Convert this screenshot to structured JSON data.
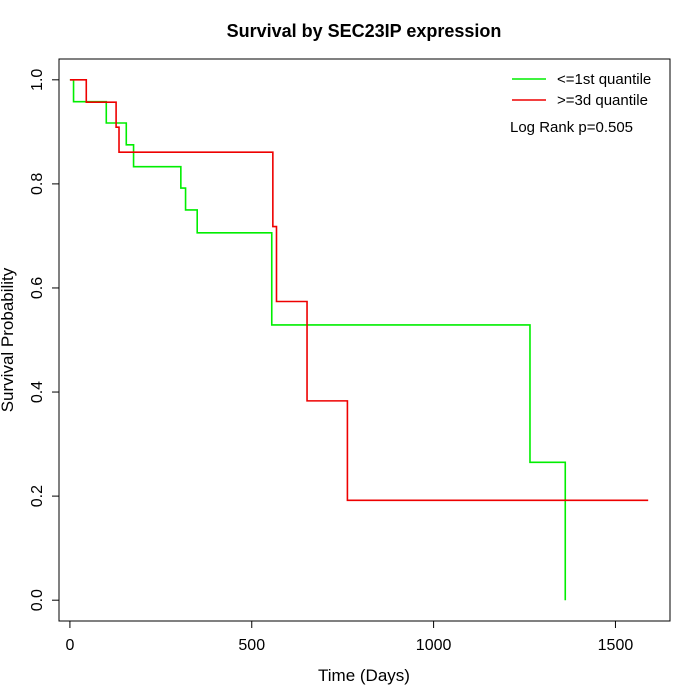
{
  "chart_data": {
    "type": "line",
    "step": true,
    "title": "Survival by SEC23IP expression",
    "xlabel": "Time (Days)",
    "ylabel": "Survival Probability",
    "xlim": [
      -30,
      1650
    ],
    "ylim": [
      -0.04,
      1.04
    ],
    "x_ticks": [
      0,
      500,
      1000,
      1500
    ],
    "y_ticks": [
      0.0,
      0.2,
      0.4,
      0.6,
      0.8,
      1.0
    ],
    "x_tick_labels": [
      "0",
      "500",
      "1000",
      "1500"
    ],
    "y_tick_labels": [
      "0.0",
      "0.2",
      "0.4",
      "0.6",
      "0.8",
      "1.0"
    ],
    "grid": false,
    "legend_position": "top-right",
    "annotation": "Log Rank p=0.505",
    "series": [
      {
        "name": "<=1st quantile",
        "color": "#00ee00",
        "points": [
          [
            0,
            1.0
          ],
          [
            10,
            1.0
          ],
          [
            10,
            0.958
          ],
          [
            100,
            0.958
          ],
          [
            100,
            0.917
          ],
          [
            155,
            0.917
          ],
          [
            155,
            0.875
          ],
          [
            175,
            0.875
          ],
          [
            175,
            0.833
          ],
          [
            305,
            0.833
          ],
          [
            305,
            0.792
          ],
          [
            318,
            0.792
          ],
          [
            318,
            0.75
          ],
          [
            350,
            0.75
          ],
          [
            350,
            0.706
          ],
          [
            555,
            0.706
          ],
          [
            555,
            0.529
          ],
          [
            1265,
            0.529
          ],
          [
            1265,
            0.265
          ],
          [
            1362,
            0.265
          ],
          [
            1362,
            0.0
          ]
        ]
      },
      {
        "name": ">=3d quantile",
        "color": "#ee0000",
        "points": [
          [
            0,
            1.0
          ],
          [
            45,
            1.0
          ],
          [
            45,
            0.957
          ],
          [
            127,
            0.957
          ],
          [
            127,
            0.909
          ],
          [
            135,
            0.909
          ],
          [
            135,
            0.861
          ],
          [
            558,
            0.861
          ],
          [
            558,
            0.718
          ],
          [
            568,
            0.718
          ],
          [
            568,
            0.574
          ],
          [
            652,
            0.574
          ],
          [
            652,
            0.383
          ],
          [
            763,
            0.383
          ],
          [
            763,
            0.192
          ],
          [
            1590,
            0.192
          ]
        ]
      }
    ]
  }
}
